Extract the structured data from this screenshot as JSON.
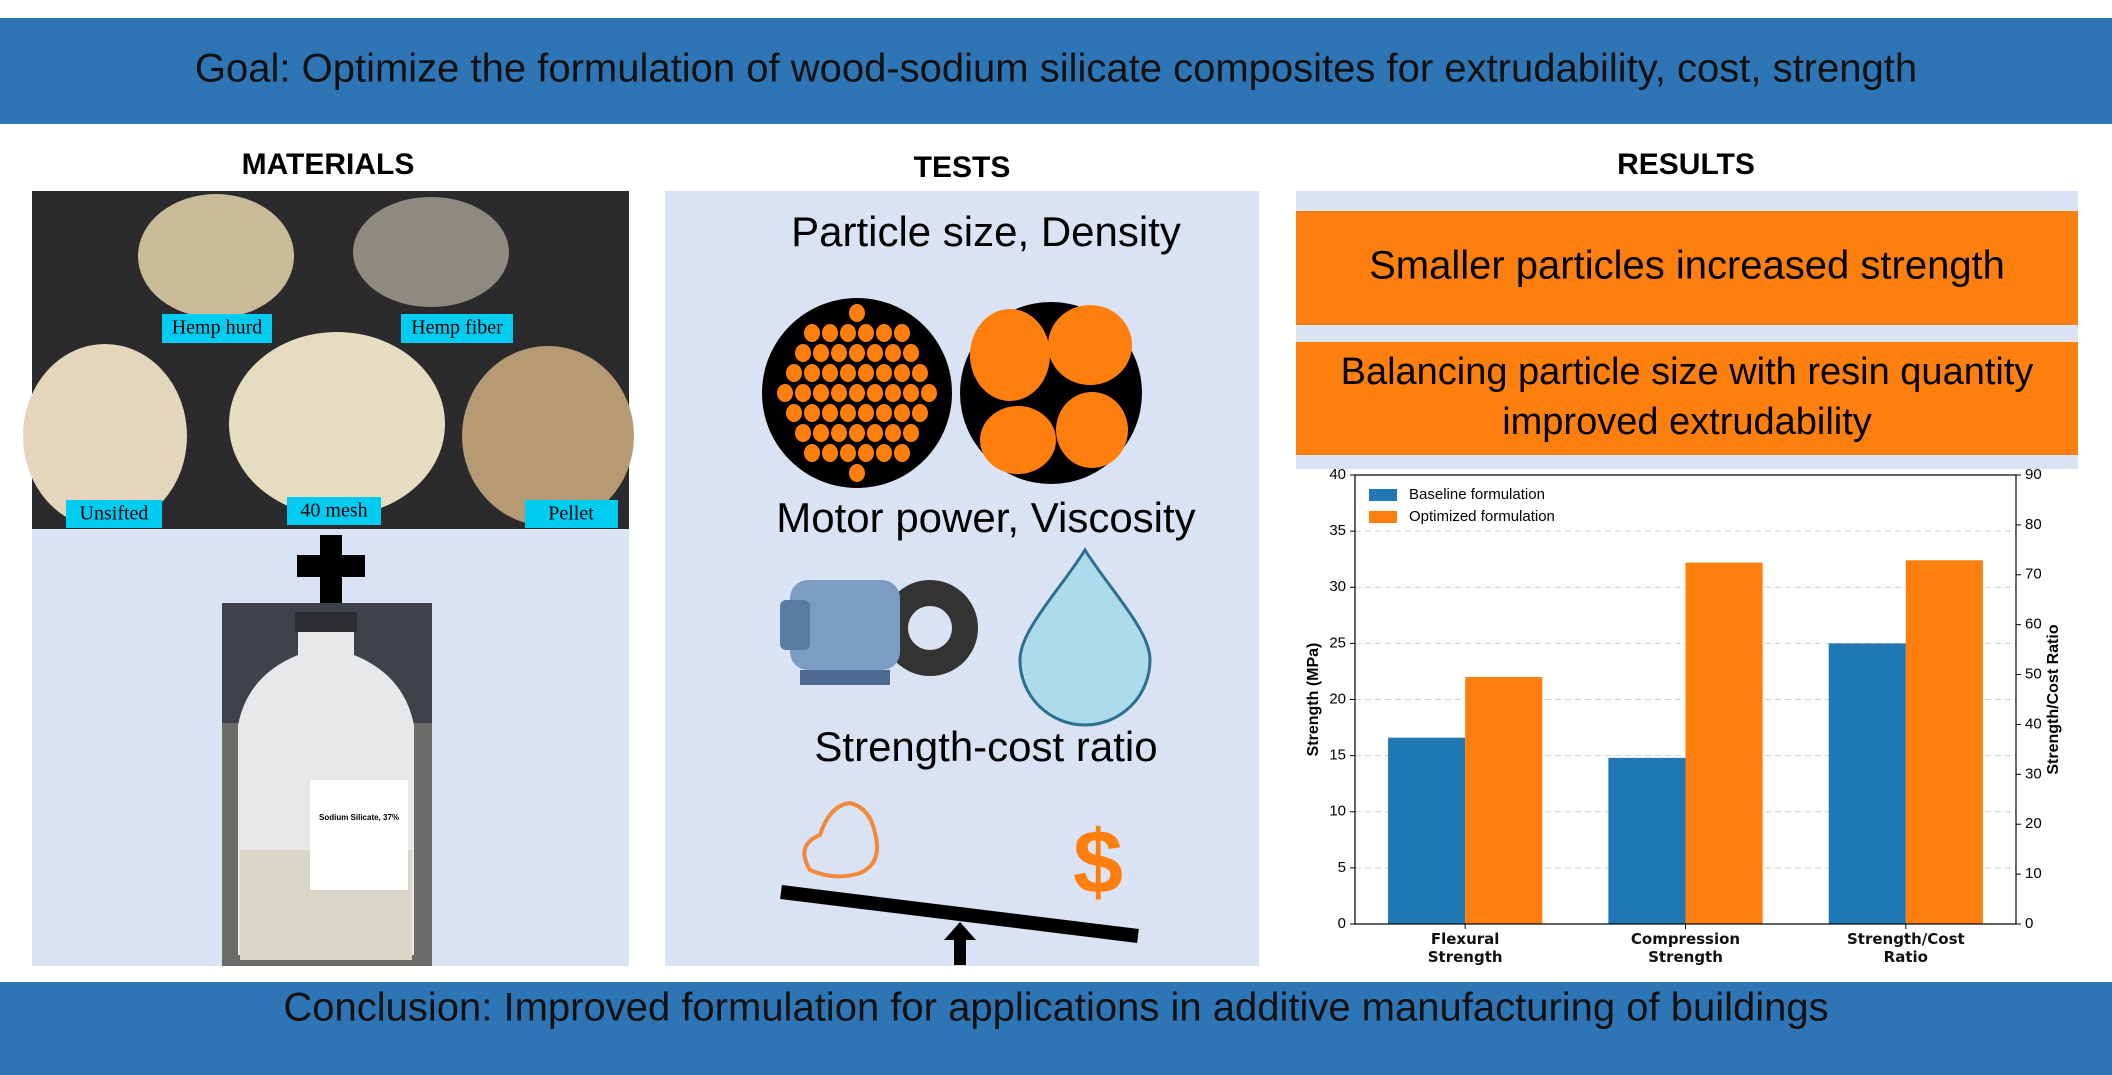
{
  "header": {
    "title": "Goal: Optimize the formulation of wood-sodium silicate composites for extrudability, cost, strength"
  },
  "materials": {
    "heading": "MATERIALS",
    "labels": [
      "Hemp hurd",
      "Hemp fiber",
      "Unsifted",
      "40 mesh",
      "Pellet"
    ],
    "bottle_label": "Sodium Silicate, 37%"
  },
  "tests": {
    "heading": "TESTS",
    "items": [
      "Particle size, Density",
      "Motor power, Viscosity",
      "Strength-cost ratio"
    ],
    "cost_symbol": "$"
  },
  "results": {
    "heading": "RESULTS",
    "findings": [
      {
        "lines": [
          "Smaller particles increased strength"
        ]
      },
      {
        "lines": [
          "Balancing particle size with resin quantity",
          "improved extrudability"
        ]
      }
    ]
  },
  "chart_data": {
    "type": "bar",
    "categories": [
      "Flexural Strength",
      "Compression Strength",
      "Strength/Cost Ratio"
    ],
    "series": [
      {
        "name": "Baseline formulation",
        "color": "#1f77b4",
        "values": [
          16.6,
          14.8,
          25.0
        ]
      },
      {
        "name": "Optimized formulation",
        "color": "#ff7f0e",
        "values": [
          22.0,
          32.2,
          32.4
        ]
      }
    ],
    "ylabel": "Strength (MPa)",
    "y2label": "Strength/Cost Ratio",
    "ylim": [
      0,
      40
    ],
    "yticks": [
      0,
      5,
      10,
      15,
      20,
      25,
      30,
      35,
      40
    ],
    "y2lim": [
      0,
      90
    ],
    "y2ticks": [
      0,
      10,
      20,
      30,
      40,
      50,
      60,
      70,
      80,
      90
    ],
    "grid": true,
    "legend": "upper left"
  },
  "footer": {
    "text": "Conclusion: Improved formulation for applications in additive manufacturing of buildings"
  }
}
